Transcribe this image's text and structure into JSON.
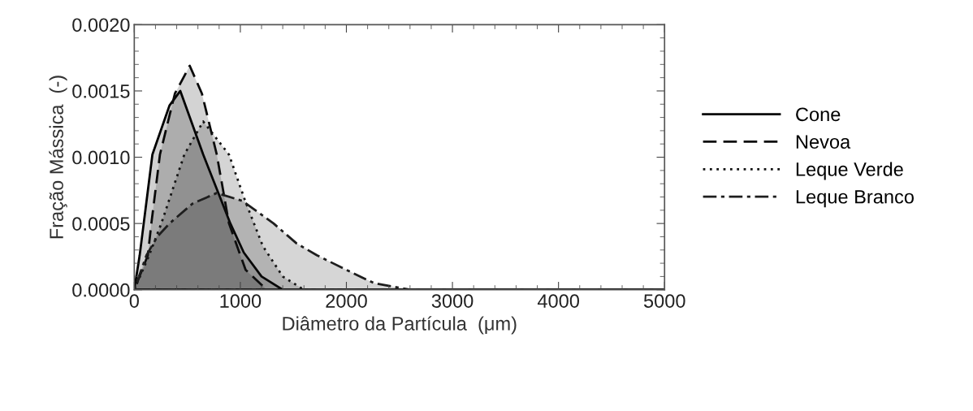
{
  "chart_data": {
    "type": "area",
    "xlabel": "Diâmetro da Partícula  (μm)",
    "ylabel": "Fração Mássica  (-)",
    "xlim": [
      0,
      5000
    ],
    "ylim": [
      0,
      0.002
    ],
    "xticks": [
      0,
      1000,
      2000,
      3000,
      4000,
      5000
    ],
    "yticks": [
      {
        "value": 0,
        "label": "0.0000"
      },
      {
        "value": 0.0005,
        "label": "0.0005"
      },
      {
        "value": 0.001,
        "label": "0.0010"
      },
      {
        "value": 0.0015,
        "label": "0.0015"
      },
      {
        "value": 0.002,
        "label": "0.0020"
      }
    ],
    "legend": "right",
    "grid": false,
    "series": [
      {
        "name": "Cone",
        "color": "#000000",
        "line_style": "solid",
        "x": [
          0,
          51,
          89,
          171,
          332,
          434,
          650,
          906,
          1033,
          1200,
          1400,
          1600,
          5000
        ],
        "values": [
          0,
          0.00026,
          0.0005,
          0.00102,
          0.00139,
          0.0015,
          0.00102,
          0.0005,
          0.00028,
          0.0001,
          0,
          0,
          0
        ]
      },
      {
        "name": "Nevoa",
        "color": "#0a0a0a",
        "line_style": "dashed",
        "x": [
          0,
          128,
          161,
          242,
          383,
          523,
          638,
          778,
          893,
          1050,
          1250,
          1500,
          5000
        ],
        "values": [
          0,
          0.00026,
          0.0005,
          0.00102,
          0.00148,
          0.00169,
          0.00148,
          0.00102,
          0.0005,
          0.00015,
          0,
          0,
          0
        ]
      },
      {
        "name": "Leque Verde",
        "color": "#141414",
        "line_style": "dotted",
        "x": [
          0,
          140,
          255,
          472,
          650,
          893,
          1046,
          1212,
          1400,
          1600,
          1900,
          5000
        ],
        "values": [
          0,
          0.00026,
          0.0005,
          0.00102,
          0.00127,
          0.00102,
          0.00067,
          0.00033,
          0.0001,
          0,
          0,
          0
        ]
      },
      {
        "name": "Leque Branco",
        "color": "#1e1e1e",
        "line_style": "dashdot",
        "x": [
          0,
          115,
          217,
          332,
          550,
          778,
          1020,
          1314,
          1530,
          1722,
          2000,
          2260,
          2600,
          3000,
          5000
        ],
        "values": [
          0,
          0.00026,
          0.0004,
          0.0005,
          0.00065,
          0.00073,
          0.00067,
          0.0005,
          0.00035,
          0.00026,
          0.00015,
          5e-05,
          0,
          0,
          0
        ]
      }
    ]
  }
}
